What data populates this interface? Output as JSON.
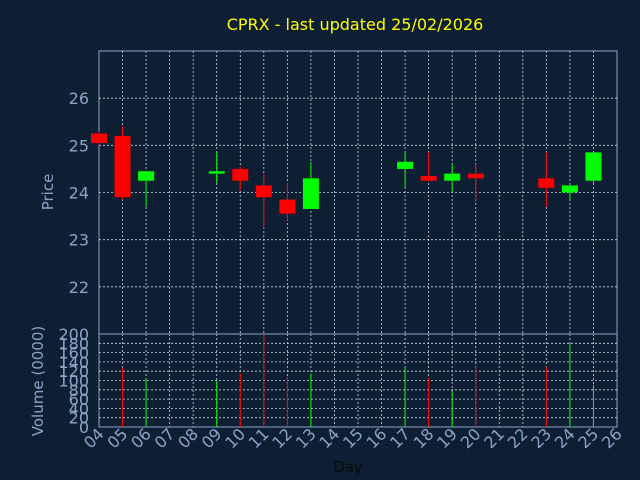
{
  "chart_data": {
    "type": "candlestick",
    "title": "CPRX - last updated 25/02/2026",
    "xlabel": "Day",
    "price_panel": {
      "ylabel": "Price",
      "ylim": [
        21,
        27
      ],
      "yticks": [
        "22",
        "23",
        "24",
        "25",
        "26"
      ],
      "grid": true
    },
    "volume_panel": {
      "ylabel": "Volume (0000)",
      "ylim": [
        0,
        200
      ],
      "yticks": [
        "0",
        "20",
        "40",
        "60",
        "80",
        "100",
        "120",
        "140",
        "160",
        "180",
        "200"
      ],
      "grid": true
    },
    "categories": [
      "04",
      "05",
      "06",
      "07",
      "08",
      "09",
      "10",
      "11",
      "12",
      "13",
      "14",
      "15",
      "16",
      "17",
      "18",
      "19",
      "20",
      "21",
      "22",
      "23",
      "24",
      "25",
      "26"
    ],
    "xlim": [
      0,
      22
    ],
    "up_color": "#00ff00",
    "down_color": "#ff0000",
    "candles": [
      {
        "day": "04",
        "x": 0,
        "open": 25.25,
        "close": 25.05,
        "high": 25.3,
        "low": 25.0
      },
      {
        "day": "05",
        "x": 1,
        "open": 25.2,
        "close": 23.9,
        "high": 25.4,
        "low": 23.85
      },
      {
        "day": "06",
        "x": 2,
        "open": 24.25,
        "close": 24.45,
        "high": 24.45,
        "low": 23.7
      },
      {
        "day": "09",
        "x": 5,
        "open": 24.4,
        "close": 24.45,
        "high": 24.85,
        "low": 24.2
      },
      {
        "day": "10",
        "x": 6,
        "open": 24.5,
        "close": 24.25,
        "high": 24.55,
        "low": 24.05
      },
      {
        "day": "11",
        "x": 7,
        "open": 24.15,
        "close": 23.9,
        "high": 24.4,
        "low": 23.25
      },
      {
        "day": "12",
        "x": 8,
        "open": 23.85,
        "close": 23.55,
        "high": 24.2,
        "low": 23.4
      },
      {
        "day": "13",
        "x": 9,
        "open": 23.65,
        "close": 24.3,
        "high": 24.65,
        "low": 23.65
      },
      {
        "day": "17",
        "x": 13,
        "open": 24.5,
        "close": 24.65,
        "high": 24.85,
        "low": 24.1
      },
      {
        "day": "18",
        "x": 14,
        "open": 24.35,
        "close": 24.25,
        "high": 24.85,
        "low": 24.25
      },
      {
        "day": "19",
        "x": 15,
        "open": 24.25,
        "close": 24.4,
        "high": 24.6,
        "low": 24.0
      },
      {
        "day": "20",
        "x": 16,
        "open": 24.4,
        "close": 24.3,
        "high": 24.6,
        "low": 23.8
      },
      {
        "day": "23",
        "x": 19,
        "open": 24.3,
        "close": 24.1,
        "high": 24.85,
        "low": 23.7
      },
      {
        "day": "24",
        "x": 20,
        "open": 24.0,
        "close": 24.15,
        "high": 24.15,
        "low": 23.85
      },
      {
        "day": "25",
        "x": 21,
        "open": 24.25,
        "close": 24.85,
        "high": 24.85,
        "low": 24.2
      }
    ],
    "volume": [
      {
        "day": "05",
        "x": 1,
        "value": 128,
        "direction": "down"
      },
      {
        "day": "06",
        "x": 2,
        "value": 105,
        "direction": "up"
      },
      {
        "day": "09",
        "x": 5,
        "value": 100,
        "direction": "up"
      },
      {
        "day": "10",
        "x": 6,
        "value": 115,
        "direction": "down"
      },
      {
        "day": "11",
        "x": 7,
        "value": 200,
        "direction": "down"
      },
      {
        "day": "12",
        "x": 8,
        "value": 108,
        "direction": "down"
      },
      {
        "day": "13",
        "x": 9,
        "value": 115,
        "direction": "up"
      },
      {
        "day": "17",
        "x": 13,
        "value": 130,
        "direction": "up"
      },
      {
        "day": "18",
        "x": 14,
        "value": 105,
        "direction": "down"
      },
      {
        "day": "19",
        "x": 15,
        "value": 78,
        "direction": "up"
      },
      {
        "day": "20",
        "x": 16,
        "value": 130,
        "direction": "down"
      },
      {
        "day": "23",
        "x": 19,
        "value": 130,
        "direction": "down"
      },
      {
        "day": "24",
        "x": 20,
        "value": 178,
        "direction": "up"
      },
      {
        "day": "25",
        "x": 21,
        "value": 90,
        "direction": "up"
      }
    ]
  }
}
